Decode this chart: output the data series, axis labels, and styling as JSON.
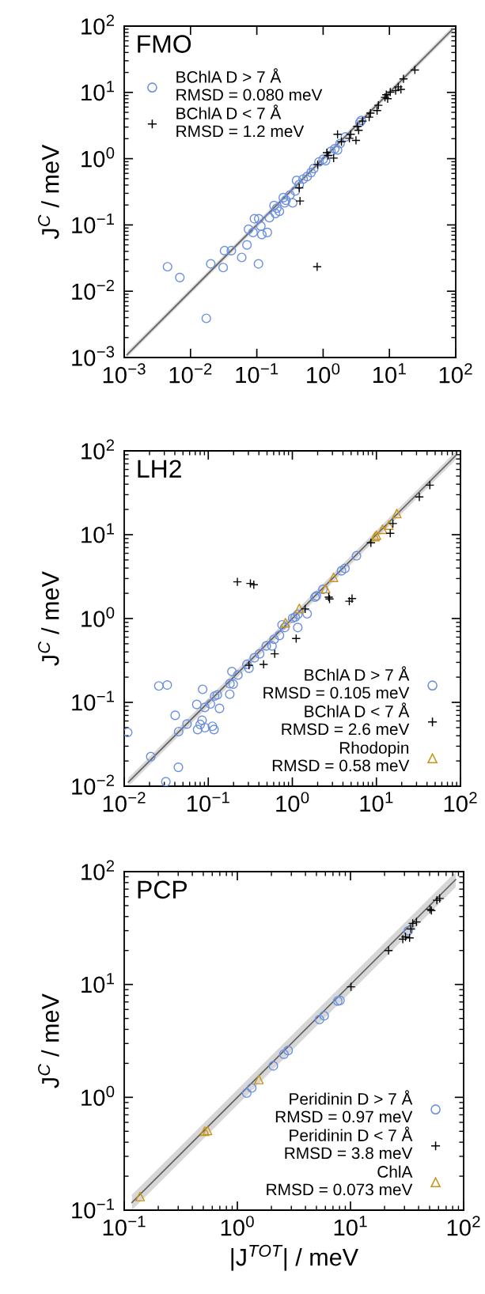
{
  "chart_data": [
    {
      "type": "scatter",
      "title": "FMO",
      "ylabel": "J$^{C}$ / meV",
      "log": "xy",
      "grid": false,
      "legend": "top left",
      "xlim": [
        0.001,
        100
      ],
      "ylim": [
        0.001,
        100
      ],
      "xticks": [
        {
          "value": 0.001,
          "label": "10$^{−3}$"
        },
        {
          "value": 0.01,
          "label": "10$^{−2}$"
        },
        {
          "value": 0.1,
          "label": "10$^{−1}$"
        },
        {
          "value": 1,
          "label": "10$^{0}$"
        },
        {
          "value": 10,
          "label": "10$^{1}$"
        },
        {
          "value": 100,
          "label": "10$^{2}$"
        }
      ],
      "yticks": [
        {
          "value": 0.001,
          "label": "10$^{−3}$"
        },
        {
          "value": 0.01,
          "label": "10$^{−2}$"
        },
        {
          "value": 0.1,
          "label": "10$^{−1}$"
        },
        {
          "value": 1,
          "label": "10$^{0}$"
        },
        {
          "value": 10,
          "label": "10$^{1}$"
        },
        {
          "value": 100,
          "label": "10$^{2}$"
        }
      ],
      "series": [
        {
          "type": "line",
          "color": "#606060",
          "x": [
            0.0011,
            90
          ],
          "values": [
            0.0011,
            90
          ],
          "lower": [
            0.001,
            81.8
          ],
          "upper": [
            0.00121,
            99
          ]
        },
        {
          "name": "BChlA D > 7 Å\nRMSD = 0.080 meV",
          "color": "#6a8fe0",
          "marker": "circle",
          "x": [
            0.0045,
            0.0069,
            0.0202,
            0.0311,
            0.0326,
            0.0413,
            0.0173,
            0.0592,
            0.071,
            0.106,
            0.075,
            0.0877,
            0.119,
            0.144,
            0.092,
            0.107,
            0.115,
            0.155,
            0.182,
            0.2,
            0.219,
            0.191,
            0.275,
            0.347,
            0.316,
            0.38,
            0.398,
            0.436,
            0.5,
            0.574,
            0.658,
            0.721,
            0.867,
            1.0,
            1.09,
            1.31,
            1.5,
            1.65,
            1.8,
            2.17,
            3.59,
            3.76,
            0.263,
            0.251
          ],
          "values": [
            0.0234,
            0.0161,
            0.0259,
            0.0228,
            0.0409,
            0.0409,
            0.0039,
            0.0323,
            0.05,
            0.0259,
            0.086,
            0.077,
            0.0716,
            0.077,
            0.124,
            0.124,
            0.096,
            0.129,
            0.196,
            0.179,
            0.16,
            0.149,
            0.236,
            0.215,
            0.283,
            0.325,
            0.469,
            0.408,
            0.491,
            0.538,
            0.618,
            0.708,
            0.891,
            0.977,
            0.933,
            1.29,
            1.41,
            1.35,
            1.69,
            2.13,
            3.52,
            3.76,
            0.215,
            0.258
          ]
        },
        {
          "name": "BChlA D < 7 Å\nRMSD = 1.2 meV",
          "color": "#000000",
          "marker": "cross",
          "x": [
            24.2,
            16.3,
            13.6,
            14.9,
            12.4,
            10.3,
            8.97,
            8.57,
            9.4,
            6.82,
            6.51,
            5.18,
            4.95,
            3.93,
            3.27,
            3.43,
            2.61,
            2.49,
            3.13,
            1.65,
            1.89,
            1.14,
            1.19,
            1.44,
            0.828,
            0.436,
            0.448,
            0.813
          ],
          "values": [
            21.8,
            16.0,
            12.1,
            11.1,
            10.6,
            10.1,
            9.22,
            8.41,
            8.04,
            6.39,
            5.32,
            4.86,
            4.23,
            3.69,
            3.07,
            2.68,
            2.33,
            2.03,
            1.89,
            2.33,
            1.8,
            1.23,
            1.12,
            1.02,
            0.813,
            0.363,
            0.23,
            0.0234
          ]
        }
      ]
    },
    {
      "type": "scatter",
      "title": "LH2",
      "ylabel": "J$^{C}$ / meV",
      "log": "xy",
      "grid": false,
      "legend": "bottom right",
      "xlim": [
        0.01,
        100
      ],
      "ylim": [
        0.01,
        100
      ],
      "xticks": [
        {
          "value": 0.01,
          "label": "10$^{−2}$"
        },
        {
          "value": 0.1,
          "label": "10$^{−1}$"
        },
        {
          "value": 1,
          "label": "10$^{0}$"
        },
        {
          "value": 10,
          "label": "10$^{1}$"
        },
        {
          "value": 100,
          "label": "10$^{2}$"
        }
      ],
      "yticks": [
        {
          "value": 0.01,
          "label": "10$^{−2}$"
        },
        {
          "value": 0.1,
          "label": "10$^{−1}$"
        },
        {
          "value": 1,
          "label": "10$^{0}$"
        },
        {
          "value": 10,
          "label": "10$^{1}$"
        },
        {
          "value": 100,
          "label": "10$^{2}$"
        }
      ],
      "series": [
        {
          "type": "line",
          "color": "#606060",
          "x": [
            0.0112,
            89
          ],
          "values": [
            0.0112,
            89
          ],
          "lower": [
            0.01,
            79.5
          ],
          "upper": [
            0.01254,
            99.7
          ]
        },
        {
          "name": "BChlA D > 7 Å\nRMSD = 0.105 meV",
          "color": "#6a8fe0",
          "marker": "circle",
          "x": [
            0.011,
            0.0207,
            0.0313,
            0.0441,
            0.0258,
            0.0325,
            0.0404,
            0.0444,
            0.0558,
            0.073,
            0.0857,
            0.0908,
            0.0747,
            0.0802,
            0.0843,
            0.0914,
            0.106,
            0.112,
            0.117,
            0.119,
            0.128,
            0.136,
            0.18,
            0.181,
            0.191,
            0.198,
            0.225,
            0.288,
            0.305,
            0.353,
            0.408,
            0.489,
            0.573,
            0.607,
            0.702,
            0.755,
            1.01,
            1.16,
            1.16,
            1.5,
            1.86,
            1.93,
            2.31,
            3.84,
            4.22,
            5.79,
            1.08,
            0.811
          ],
          "values": [
            0.0438,
            0.0225,
            0.0113,
            0.0168,
            0.157,
            0.161,
            0.07,
            0.0448,
            0.0552,
            0.0944,
            0.143,
            0.0871,
            0.0474,
            0.0545,
            0.0611,
            0.0499,
            0.0957,
            0.0518,
            0.0474,
            0.119,
            0.123,
            0.0847,
            0.125,
            0.167,
            0.233,
            0.165,
            0.212,
            0.284,
            0.255,
            0.34,
            0.379,
            0.471,
            0.471,
            0.565,
            0.629,
            0.841,
            1.01,
            1.12,
            0.782,
            1.14,
            1.8,
            1.86,
            2.23,
            3.71,
            3.96,
            5.6,
            1.04,
            0.782
          ]
        },
        {
          "name": "BChlA D < 7 Å\nRMSD = 2.6 meV",
          "color": "#000000",
          "marker": "cross",
          "x": [
            43.2,
            32.4,
            15.7,
            14.6,
            8.6,
            0.222,
            0.317,
            0.348,
            2.71,
            2.77,
            4.76,
            5.13,
            1.42,
            1.11,
            0.617,
            0.455,
            0.305
          ],
          "values": [
            39.0,
            28.2,
            13.6,
            10.4,
            8.0,
            2.74,
            2.62,
            2.53,
            1.8,
            1.71,
            1.61,
            1.73,
            1.3,
            0.577,
            0.379,
            0.284,
            0.277
          ]
        },
        {
          "name": "Rhodopin\nRMSD = 0.58 meV",
          "color": "#c8951a",
          "marker": "triangle",
          "x": [
            17.5,
            14.1,
            11.8,
            10.0,
            9.6,
            3.09,
            2.49,
            1.21,
            0.828
          ],
          "values": [
            17.9,
            13.0,
            11.6,
            9.86,
            9.5,
            3.1,
            2.28,
            1.32,
            0.891
          ]
        }
      ]
    },
    {
      "type": "scatter",
      "title": "PCP",
      "ylabel": "J$^{C}$ / meV",
      "xlabel": "|J$^{TOT}$| / meV",
      "log": "xy",
      "grid": false,
      "legend": "bottom right",
      "xlim": [
        0.1,
        100
      ],
      "ylim": [
        0.1,
        100
      ],
      "xticks": [
        {
          "value": 0.1,
          "label": "10$^{−1}$"
        },
        {
          "value": 1,
          "label": "10$^{0}$"
        },
        {
          "value": 10,
          "label": "10$^{1}$"
        },
        {
          "value": 100,
          "label": "10$^{2}$"
        }
      ],
      "yticks": [
        {
          "value": 0.1,
          "label": "10$^{−1}$"
        },
        {
          "value": 1,
          "label": "10$^{0}$"
        },
        {
          "value": 10,
          "label": "10$^{1}$"
        },
        {
          "value": 100,
          "label": "10$^{2}$"
        }
      ],
      "series": [
        {
          "type": "line",
          "color": "#606060",
          "x": [
            0.117,
            85
          ],
          "values": [
            0.117,
            85
          ],
          "lower": [
            0.1,
            72.6
          ],
          "upper": [
            0.137,
            99.5
          ]
        },
        {
          "name": "Peridinin D > 7 Å\nRMSD = 0.97 meV",
          "color": "#6a8fe0",
          "marker": "circle",
          "x": [
            32.4,
            7.71,
            8.07,
            5.32,
            5.85,
            2.58,
            2.81,
            2.08,
            1.21,
            1.34
          ],
          "values": [
            29.9,
            7.13,
            7.22,
            4.89,
            5.28,
            2.41,
            2.6,
            1.9,
            1.09,
            1.21
          ]
        },
        {
          "name": "Peridinin D < 7 Å\nRMSD = 3.8 meV",
          "color": "#000000",
          "marker": "cross",
          "x": [
            61.4,
            58.0,
            50.5,
            51.9,
            38.3,
            35.5,
            34.2,
            33.3,
            29.0,
            30.6,
            21.7,
            10.1
          ],
          "values": [
            57.9,
            55.8,
            46.4,
            45.2,
            35.8,
            34.8,
            31.0,
            25.9,
            25.2,
            26.4,
            20.0,
            9.53
          ]
        },
        {
          "name": "ChlA\nRMSD = 0.073 meV",
          "color": "#c8951a",
          "marker": "triangle",
          "x": [
            0.138,
            0.515,
            0.545,
            1.55
          ],
          "values": [
            0.132,
            0.501,
            0.509,
            1.44
          ]
        }
      ]
    }
  ]
}
